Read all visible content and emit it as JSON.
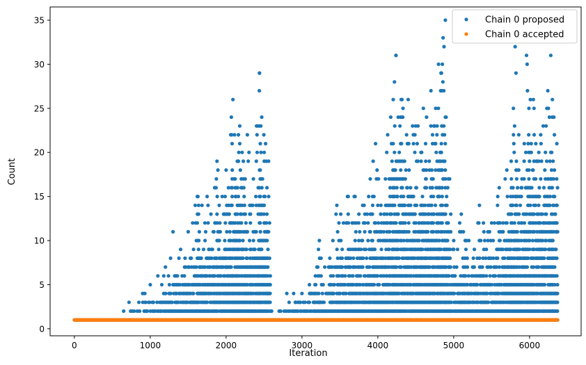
{
  "chart_data": {
    "type": "scatter",
    "title": "",
    "xlabel": "Iteration",
    "ylabel": "Count",
    "xlim": [
      -320,
      6680
    ],
    "ylim": [
      -0.8,
      36.5
    ],
    "xticks": [
      0,
      1000,
      2000,
      3000,
      4000,
      5000,
      6000
    ],
    "yticks": [
      0,
      5,
      10,
      15,
      20,
      25,
      30,
      35
    ],
    "grid": false,
    "legend_position": "top-right",
    "colors": {
      "proposed": "#1f77b4",
      "accepted": "#ff7f0e"
    },
    "series": [
      {
        "name": "Chain 0 proposed",
        "color": "#1f77b4",
        "note_outline": "dense vertical streaks of integer counts; upper envelope per region listed in envelope",
        "envelope": [
          {
            "x": 650,
            "max": 2
          },
          {
            "x": 720,
            "max": 3
          },
          {
            "x": 850,
            "max": 3
          },
          {
            "x": 900,
            "max": 4
          },
          {
            "x": 1000,
            "max": 5
          },
          {
            "x": 1100,
            "max": 6
          },
          {
            "x": 1200,
            "max": 7
          },
          {
            "x": 1300,
            "max": 11
          },
          {
            "x": 1400,
            "max": 9
          },
          {
            "x": 1500,
            "max": 11
          },
          {
            "x": 1620,
            "max": 15
          },
          {
            "x": 1750,
            "max": 15
          },
          {
            "x": 1800,
            "max": 13
          },
          {
            "x": 1880,
            "max": 19
          },
          {
            "x": 2000,
            "max": 18
          },
          {
            "x": 2090,
            "max": 26
          },
          {
            "x": 2180,
            "max": 23
          },
          {
            "x": 2280,
            "max": 22
          },
          {
            "x": 2360,
            "max": 17
          },
          {
            "x": 2440,
            "max": 29
          },
          {
            "x": 2520,
            "max": 21
          },
          {
            "x": 2560,
            "max": 19
          },
          {
            "x": 2600,
            "max": 2
          },
          {
            "x": 2800,
            "max": 4
          },
          {
            "x": 3000,
            "max": 4
          },
          {
            "x": 3230,
            "max": 10
          },
          {
            "x": 3300,
            "max": 7
          },
          {
            "x": 3460,
            "max": 14
          },
          {
            "x": 3600,
            "max": 15
          },
          {
            "x": 3700,
            "max": 15
          },
          {
            "x": 3800,
            "max": 14
          },
          {
            "x": 3970,
            "max": 21
          },
          {
            "x": 4100,
            "max": 17
          },
          {
            "x": 4130,
            "max": 22
          },
          {
            "x": 4240,
            "max": 31
          },
          {
            "x": 4400,
            "max": 26
          },
          {
            "x": 4530,
            "max": 23
          },
          {
            "x": 4600,
            "max": 25
          },
          {
            "x": 4700,
            "max": 27
          },
          {
            "x": 4800,
            "max": 30
          },
          {
            "x": 4860,
            "max": 33
          },
          {
            "x": 4890,
            "max": 35
          },
          {
            "x": 4900,
            "max": 24
          },
          {
            "x": 5000,
            "max": 10
          },
          {
            "x": 5100,
            "max": 13
          },
          {
            "x": 5200,
            "max": 10
          },
          {
            "x": 5340,
            "max": 14
          },
          {
            "x": 5500,
            "max": 12
          },
          {
            "x": 5600,
            "max": 16
          },
          {
            "x": 5700,
            "max": 18
          },
          {
            "x": 5810,
            "max": 32
          },
          {
            "x": 5900,
            "max": 17
          },
          {
            "x": 5960,
            "max": 31
          },
          {
            "x": 6050,
            "max": 26
          },
          {
            "x": 6180,
            "max": 23
          },
          {
            "x": 6280,
            "max": 31
          },
          {
            "x": 6320,
            "max": 24
          },
          {
            "x": 6360,
            "max": 21
          }
        ],
        "x_range": [
          0,
          6370
        ],
        "min": 1
      },
      {
        "name": "Chain 0 accepted",
        "color": "#ff7f0e",
        "x_range": [
          0,
          6370
        ],
        "constant_value": 1
      }
    ]
  },
  "legend": {
    "items": [
      {
        "label": "Chain 0 proposed"
      },
      {
        "label": "Chain 0 accepted"
      }
    ]
  },
  "axes": {
    "x_tick_labels": [
      "0",
      "1000",
      "2000",
      "3000",
      "4000",
      "5000",
      "6000"
    ],
    "y_tick_labels": [
      "0",
      "5",
      "10",
      "15",
      "20",
      "25",
      "30",
      "35"
    ],
    "xlabel": "Iteration",
    "ylabel": "Count"
  }
}
